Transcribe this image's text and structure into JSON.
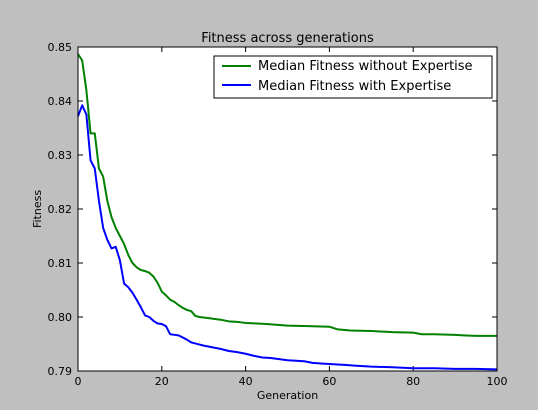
{
  "chart_data": {
    "type": "line",
    "title": "Fitness across generations",
    "xlabel": "Generation",
    "ylabel": "Fitness",
    "xlim": [
      0,
      100
    ],
    "ylim": [
      0.79,
      0.85
    ],
    "x_ticks": [
      0,
      20,
      40,
      60,
      80,
      100
    ],
    "y_ticks": [
      0.79,
      0.8,
      0.81,
      0.82,
      0.83,
      0.84,
      0.85
    ],
    "y_tick_labels": [
      "0.79",
      "0.80",
      "0.81",
      "0.82",
      "0.83",
      "0.84",
      "0.85"
    ],
    "grid": false,
    "legend_position": "top-right",
    "series": [
      {
        "name": "Median Fitness without Expertise",
        "color": "#008000",
        "x": [
          0,
          1,
          2,
          3,
          4,
          5,
          6,
          7,
          8,
          9,
          10,
          11,
          12,
          13,
          14,
          15,
          16,
          17,
          18,
          19,
          20,
          21,
          22,
          23,
          24,
          25,
          26,
          27,
          28,
          29,
          30,
          32,
          34,
          36,
          38,
          40,
          45,
          50,
          55,
          60,
          62,
          65,
          70,
          75,
          80,
          82,
          85,
          90,
          92,
          95,
          100
        ],
        "values": [
          0.8487,
          0.8475,
          0.842,
          0.834,
          0.834,
          0.8275,
          0.826,
          0.8215,
          0.8185,
          0.8165,
          0.815,
          0.8135,
          0.8115,
          0.81,
          0.8092,
          0.8087,
          0.8085,
          0.8082,
          0.8075,
          0.8063,
          0.8047,
          0.804,
          0.8032,
          0.8028,
          0.8022,
          0.8017,
          0.8013,
          0.8011,
          0.8002,
          0.8,
          0.7999,
          0.7997,
          0.7995,
          0.7992,
          0.7991,
          0.7989,
          0.7987,
          0.7984,
          0.7983,
          0.7982,
          0.7977,
          0.7975,
          0.7974,
          0.7972,
          0.7971,
          0.7968,
          0.7968,
          0.7967,
          0.7966,
          0.7965,
          0.7965
        ]
      },
      {
        "name": "Median Fitness with Expertise",
        "color": "#0000ff",
        "x": [
          0,
          1,
          2,
          3,
          4,
          5,
          6,
          7,
          8,
          9,
          10,
          11,
          12,
          13,
          14,
          15,
          16,
          17,
          18,
          19,
          20,
          21,
          22,
          23,
          24,
          25,
          26,
          27,
          28,
          29,
          30,
          32,
          34,
          36,
          38,
          40,
          42,
          44,
          46,
          48,
          50,
          52,
          54,
          56,
          58,
          60,
          62,
          64,
          66,
          68,
          70,
          75,
          80,
          85,
          90,
          95,
          100
        ],
        "values": [
          0.8372,
          0.8392,
          0.8375,
          0.829,
          0.8275,
          0.8215,
          0.8165,
          0.8143,
          0.8127,
          0.813,
          0.8105,
          0.8062,
          0.8055,
          0.8045,
          0.8032,
          0.8018,
          0.8003,
          0.8,
          0.7993,
          0.7988,
          0.7987,
          0.7983,
          0.7968,
          0.7967,
          0.7966,
          0.7962,
          0.7958,
          0.7953,
          0.7951,
          0.7949,
          0.7947,
          0.7944,
          0.7941,
          0.7937,
          0.7935,
          0.7932,
          0.7928,
          0.7925,
          0.7924,
          0.7922,
          0.792,
          0.7919,
          0.7918,
          0.7915,
          0.7914,
          0.7913,
          0.7912,
          0.7911,
          0.791,
          0.7909,
          0.7908,
          0.7907,
          0.7905,
          0.7905,
          0.7904,
          0.7904,
          0.7903
        ]
      }
    ]
  }
}
